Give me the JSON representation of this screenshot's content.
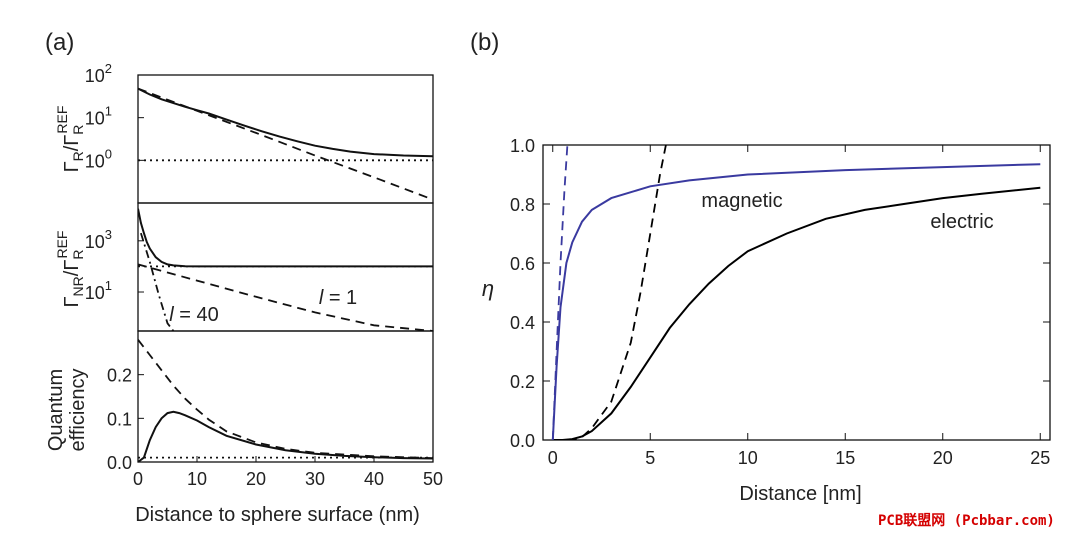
{
  "panel_a_label": "(a)",
  "panel_b_label": "(b)",
  "watermark": "PCB联盟网 (Pcbbar.com)",
  "chart_data": [
    {
      "type": "line",
      "panel": "(a) top",
      "ylabel": "ΓR/ΓR REF",
      "yscale": "log",
      "xlim": [
        0,
        50
      ],
      "ylim": [
        0.1,
        100
      ],
      "ytick_labels": [
        "10^2",
        "10^1",
        "10^0"
      ],
      "series": [
        {
          "style": "solid",
          "x": [
            0,
            2,
            4,
            6,
            8,
            10,
            12,
            15,
            18,
            21,
            24,
            27,
            30,
            33,
            36,
            40,
            45,
            50
          ],
          "y": [
            48,
            35,
            27,
            22,
            18,
            15,
            12.5,
            9,
            6.5,
            4.8,
            3.6,
            2.8,
            2.2,
            1.85,
            1.6,
            1.4,
            1.3,
            1.25
          ]
        },
        {
          "style": "dashed",
          "x": [
            0,
            10,
            20,
            30,
            40,
            50
          ],
          "y": [
            48,
            14.5,
            4.4,
            1.3,
            0.4,
            0.12
          ]
        },
        {
          "style": "dotted",
          "x": [
            0,
            50
          ],
          "y": [
            1,
            1
          ]
        }
      ]
    },
    {
      "type": "line",
      "panel": "(a) middle",
      "ylabel": "ΓNR/ΓR REF",
      "yscale": "log",
      "xlim": [
        0,
        50
      ],
      "ylim": [
        0.3,
        30000
      ],
      "ytick_labels": [
        "10^3",
        "10^1"
      ],
      "annotations": [
        "l = 1",
        "l = 40"
      ],
      "series": [
        {
          "style": "solid",
          "x": [
            0,
            0.5,
            1,
            1.5,
            2,
            3,
            4,
            5,
            6,
            8,
            10,
            15,
            20,
            30,
            50
          ],
          "y": [
            18000,
            5000,
            2000,
            900,
            500,
            230,
            150,
            120,
            110,
            102,
            100,
            100,
            100,
            100,
            100
          ]
        },
        {
          "style": "dashed",
          "x": [
            0,
            10,
            20,
            30,
            40,
            50
          ],
          "y": [
            120,
            28,
            6.5,
            1.6,
            0.5,
            0.3
          ]
        },
        {
          "style": "dashdot",
          "x": [
            0.5,
            2,
            3.5,
            5,
            6
          ],
          "y": [
            2000,
            150,
            8,
            0.6,
            0.3
          ]
        },
        {
          "style": "dotted",
          "x": [
            0,
            50
          ],
          "y": [
            100,
            100
          ]
        }
      ]
    },
    {
      "type": "line",
      "panel": "(a) bottom",
      "xlabel": "Distance to sphere surface (nm)",
      "ylabel": "Quantum efficiency",
      "xlim": [
        0,
        50
      ],
      "ylim": [
        0,
        0.3
      ],
      "xticks": [
        0,
        10,
        20,
        30,
        40,
        50
      ],
      "yticks": [
        0.0,
        0.1,
        0.2
      ],
      "series": [
        {
          "style": "solid",
          "x": [
            0,
            1,
            2,
            3,
            4,
            5,
            6,
            7,
            8,
            10,
            12,
            15,
            20,
            25,
            30,
            35,
            40,
            45,
            50
          ],
          "y": [
            0,
            0.01,
            0.05,
            0.08,
            0.1,
            0.112,
            0.115,
            0.112,
            0.107,
            0.095,
            0.08,
            0.06,
            0.04,
            0.027,
            0.019,
            0.014,
            0.011,
            0.009,
            0.008
          ]
        },
        {
          "style": "dashed",
          "x": [
            0,
            2,
            4,
            6,
            8,
            10,
            12,
            15,
            20,
            25,
            30,
            40,
            50
          ],
          "y": [
            0.28,
            0.245,
            0.21,
            0.175,
            0.145,
            0.12,
            0.097,
            0.07,
            0.045,
            0.03,
            0.021,
            0.013,
            0.009
          ]
        },
        {
          "style": "dotted",
          "x": [
            0,
            50
          ],
          "y": [
            0.01,
            0.01
          ]
        }
      ]
    },
    {
      "type": "line",
      "panel": "(b)",
      "xlabel": "Distance [nm]",
      "ylabel": "η",
      "xlim": [
        -0.5,
        25.5
      ],
      "ylim": [
        0,
        1
      ],
      "xticks": [
        0,
        5,
        10,
        15,
        20,
        25
      ],
      "yticks": [
        0.0,
        0.2,
        0.4,
        0.6,
        0.8,
        1.0
      ],
      "series": [
        {
          "name": "electric",
          "color": "#000000",
          "style": "solid",
          "x": [
            0,
            0.5,
            1,
            1.5,
            2,
            3,
            4,
            5,
            6,
            7,
            8,
            9,
            10,
            12,
            14,
            16,
            18,
            20,
            22,
            25
          ],
          "y": [
            0,
            0,
            0.003,
            0.012,
            0.03,
            0.09,
            0.18,
            0.28,
            0.38,
            0.46,
            0.53,
            0.59,
            0.64,
            0.7,
            0.75,
            0.78,
            0.8,
            0.82,
            0.835,
            0.855
          ]
        },
        {
          "name": "magnetic",
          "color": "#3a3aa0",
          "style": "solid",
          "x": [
            0,
            0.2,
            0.4,
            0.7,
            1,
            1.5,
            2,
            3,
            4,
            5,
            7,
            10,
            15,
            20,
            25
          ],
          "y": [
            0,
            0.25,
            0.45,
            0.6,
            0.67,
            0.74,
            0.78,
            0.82,
            0.84,
            0.86,
            0.88,
            0.9,
            0.915,
            0.925,
            0.935
          ]
        },
        {
          "color": "#000000",
          "style": "dashed",
          "x": [
            0,
            1,
            1.5,
            2,
            3,
            4,
            4.5,
            5,
            5.5,
            5.8
          ],
          "y": [
            0,
            0,
            0.01,
            0.04,
            0.13,
            0.33,
            0.5,
            0.7,
            0.9,
            1.0
          ]
        },
        {
          "color": "#3a3aa0",
          "style": "dashed",
          "x": [
            0,
            0.2,
            0.4,
            0.6,
            0.75
          ],
          "y": [
            0,
            0.3,
            0.6,
            0.85,
            1.0
          ]
        }
      ]
    }
  ]
}
